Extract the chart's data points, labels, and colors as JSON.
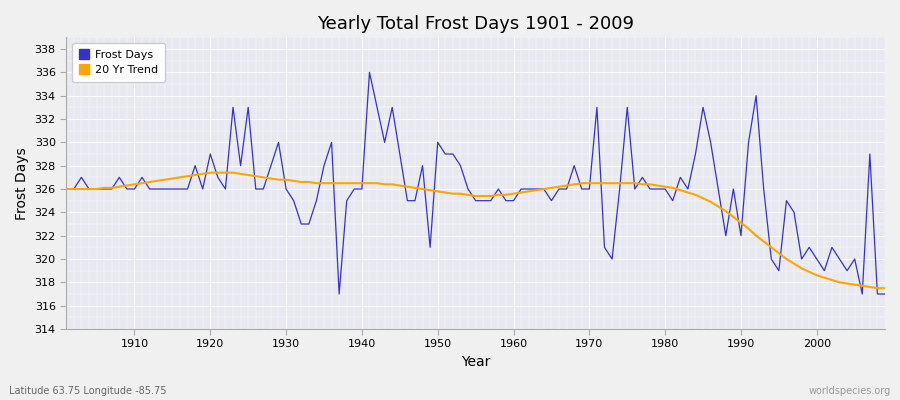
{
  "title": "Yearly Total Frost Days 1901 - 2009",
  "xlabel": "Year",
  "ylabel": "Frost Days",
  "bottom_left_label": "Latitude 63.75 Longitude -85.75",
  "bottom_right_label": "worldspecies.org",
  "line_color": "#3333cc",
  "trend_color": "#ffa500",
  "fig_bg_color": "#f0f0f0",
  "plot_bg_color": "#e8e8f0",
  "ylim": [
    314,
    339
  ],
  "yticks": [
    314,
    316,
    318,
    320,
    322,
    324,
    326,
    328,
    330,
    332,
    334,
    336,
    338
  ],
  "xticks": [
    1910,
    1920,
    1930,
    1940,
    1950,
    1960,
    1970,
    1980,
    1990,
    2000
  ],
  "xlim": [
    1901,
    2009
  ],
  "years": [
    1901,
    1902,
    1903,
    1904,
    1905,
    1906,
    1907,
    1908,
    1909,
    1910,
    1911,
    1912,
    1913,
    1914,
    1915,
    1916,
    1917,
    1918,
    1919,
    1920,
    1921,
    1922,
    1923,
    1924,
    1925,
    1926,
    1927,
    1928,
    1929,
    1930,
    1931,
    1932,
    1933,
    1934,
    1935,
    1936,
    1937,
    1938,
    1939,
    1940,
    1941,
    1942,
    1943,
    1944,
    1945,
    1946,
    1947,
    1948,
    1949,
    1950,
    1951,
    1952,
    1953,
    1954,
    1955,
    1956,
    1957,
    1958,
    1959,
    1960,
    1961,
    1962,
    1963,
    1964,
    1965,
    1966,
    1967,
    1968,
    1969,
    1970,
    1971,
    1972,
    1973,
    1974,
    1975,
    1976,
    1977,
    1978,
    1979,
    1980,
    1981,
    1982,
    1983,
    1984,
    1985,
    1986,
    1987,
    1988,
    1989,
    1990,
    1991,
    1992,
    1993,
    1994,
    1995,
    1996,
    1997,
    1998,
    1999,
    2000,
    2001,
    2002,
    2003,
    2004,
    2005,
    2006,
    2007,
    2008,
    2009
  ],
  "frost_days": [
    326,
    326,
    327,
    326,
    326,
    326,
    326,
    327,
    326,
    326,
    327,
    326,
    326,
    326,
    326,
    326,
    326,
    328,
    326,
    329,
    327,
    326,
    333,
    328,
    333,
    326,
    326,
    328,
    330,
    326,
    325,
    323,
    323,
    325,
    328,
    330,
    317,
    325,
    326,
    326,
    336,
    333,
    330,
    333,
    329,
    325,
    325,
    328,
    321,
    330,
    329,
    329,
    328,
    326,
    325,
    325,
    325,
    326,
    325,
    325,
    326,
    326,
    326,
    326,
    325,
    326,
    326,
    328,
    326,
    326,
    333,
    321,
    320,
    326,
    333,
    326,
    327,
    326,
    326,
    326,
    325,
    327,
    326,
    329,
    333,
    330,
    326,
    322,
    326,
    322,
    330,
    334,
    326,
    320,
    319,
    325,
    324,
    320,
    321,
    320,
    319,
    321,
    320,
    319,
    320,
    317,
    329,
    317,
    317
  ],
  "trend_vals": [
    326.0,
    326.0,
    326.0,
    326.0,
    326.0,
    326.1,
    326.1,
    326.2,
    326.3,
    326.4,
    326.5,
    326.6,
    326.7,
    326.8,
    326.9,
    327.0,
    327.1,
    327.2,
    327.3,
    327.4,
    327.4,
    327.4,
    327.4,
    327.3,
    327.2,
    327.1,
    327.0,
    326.9,
    326.8,
    326.8,
    326.7,
    326.6,
    326.6,
    326.5,
    326.5,
    326.5,
    326.5,
    326.5,
    326.5,
    326.5,
    326.5,
    326.5,
    326.4,
    326.4,
    326.3,
    326.2,
    326.1,
    326.0,
    325.9,
    325.8,
    325.7,
    325.6,
    325.6,
    325.5,
    325.4,
    325.4,
    325.4,
    325.5,
    325.5,
    325.6,
    325.7,
    325.8,
    325.9,
    326.0,
    326.1,
    326.2,
    326.3,
    326.4,
    326.5,
    326.5,
    326.5,
    326.5,
    326.5,
    326.5,
    326.5,
    326.5,
    326.4,
    326.4,
    326.3,
    326.2,
    326.1,
    325.9,
    325.7,
    325.5,
    325.2,
    324.9,
    324.5,
    324.1,
    323.6,
    323.1,
    322.6,
    322.0,
    321.5,
    321.0,
    320.5,
    320.0,
    319.6,
    319.2,
    318.9,
    318.6,
    318.4,
    318.2,
    318.0,
    317.9,
    317.8,
    317.7,
    317.6,
    317.5,
    317.5
  ]
}
